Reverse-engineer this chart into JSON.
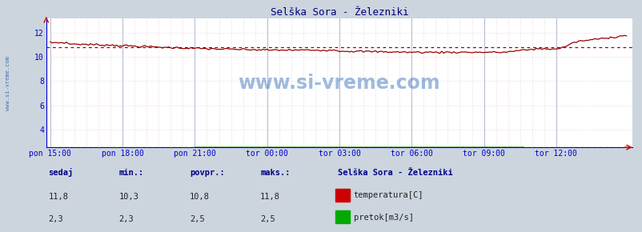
{
  "title": "Selška Sora - Železniki",
  "bg_color": "#ccd5de",
  "plot_bg_color": "#ffffff",
  "xlabel_color": "#0000cc",
  "ylabel_color": "#0000cc",
  "title_color": "#000077",
  "x_tick_labels": [
    "pon 15:00",
    "pon 18:00",
    "pon 21:00",
    "tor 00:00",
    "tor 03:00",
    "tor 06:00",
    "tor 09:00",
    "tor 12:00"
  ],
  "x_tick_positions": [
    0,
    36,
    72,
    108,
    144,
    180,
    216,
    252
  ],
  "y_ticks": [
    4,
    6,
    8,
    10,
    12
  ],
  "ylim": [
    2.5,
    13.2
  ],
  "xlim": [
    -2,
    290
  ],
  "temp_color": "#990000",
  "flow_color": "#007700",
  "avg_temp": 10.8,
  "avg_flow": 2.5,
  "watermark": "www.si-vreme.com",
  "watermark_color": "#1155aa",
  "left_label": "www.si-vreme.com",
  "left_label_color": "#3366aa",
  "legend_title": "Selška Sora - Železniki",
  "legend_items": [
    {
      "label": "temperatura[C]",
      "color": "#cc0000"
    },
    {
      "label": "pretok[m3/s]",
      "color": "#00aa00"
    }
  ],
  "stat_labels": [
    "sedaj",
    "min.:",
    "povpr.:",
    "maks.:"
  ],
  "stat_vals_temp": [
    "11,8",
    "10,3",
    "10,8",
    "11,8"
  ],
  "stat_vals_flow": [
    "2,3",
    "2,3",
    "2,5",
    "2,5"
  ]
}
